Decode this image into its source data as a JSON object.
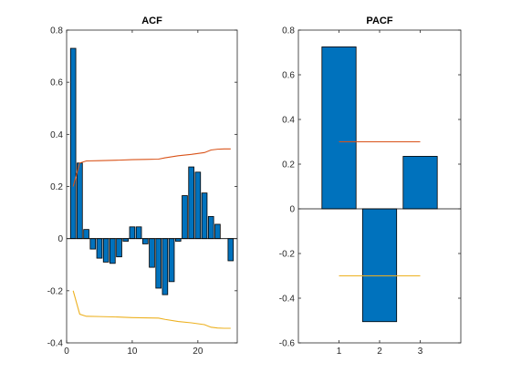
{
  "colors": {
    "bar": "#0072BD",
    "upper_bound": "#D95319",
    "lower_bound": "#EDB120",
    "axis": "#262626",
    "zero_line": "#000000"
  },
  "chart_data": [
    {
      "type": "bar",
      "title": "ACF",
      "xlabel": "",
      "ylabel": "",
      "xlim": [
        0,
        26
      ],
      "ylim": [
        -0.4,
        0.8
      ],
      "xticks": [
        0,
        10,
        20
      ],
      "yticks": [
        -0.4,
        -0.2,
        0,
        0.2,
        0.4,
        0.6,
        0.8
      ],
      "x": [
        1,
        2,
        3,
        4,
        5,
        6,
        7,
        8,
        9,
        10,
        11,
        12,
        13,
        14,
        15,
        16,
        17,
        18,
        19,
        20,
        21,
        22,
        23,
        24,
        25
      ],
      "values": [
        0.73,
        0.29,
        0.035,
        -0.04,
        -0.075,
        -0.09,
        -0.095,
        -0.07,
        -0.01,
        0.045,
        0.045,
        -0.02,
        -0.11,
        -0.19,
        -0.215,
        -0.165,
        -0.01,
        0.165,
        0.275,
        0.255,
        0.175,
        0.085,
        0.055,
        0.0,
        -0.085
      ],
      "bounds": [
        {
          "role": "upper",
          "x": [
            1,
            2,
            3,
            5,
            8,
            10,
            12,
            14,
            15,
            17,
            19,
            21,
            22,
            23,
            24,
            25
          ],
          "y": [
            0.2,
            0.29,
            0.298,
            0.299,
            0.301,
            0.303,
            0.304,
            0.305,
            0.31,
            0.318,
            0.323,
            0.33,
            0.34,
            0.343,
            0.344,
            0.344
          ]
        },
        {
          "role": "lower",
          "x": [
            1,
            2,
            3,
            5,
            8,
            10,
            12,
            14,
            15,
            17,
            19,
            21,
            22,
            23,
            24,
            25
          ],
          "y": [
            -0.2,
            -0.29,
            -0.298,
            -0.299,
            -0.301,
            -0.303,
            -0.304,
            -0.305,
            -0.31,
            -0.318,
            -0.323,
            -0.33,
            -0.34,
            -0.343,
            -0.344,
            -0.344
          ]
        }
      ],
      "grid": false,
      "legend": "none"
    },
    {
      "type": "bar",
      "title": "PACF",
      "xlabel": "",
      "ylabel": "",
      "xlim": [
        0,
        4
      ],
      "ylim": [
        -0.6,
        0.8
      ],
      "xticks": [
        1,
        2,
        3
      ],
      "yticks": [
        -0.6,
        -0.4,
        -0.2,
        0,
        0.2,
        0.4,
        0.6,
        0.8
      ],
      "x": [
        1,
        2,
        3
      ],
      "values": [
        0.725,
        -0.505,
        0.235
      ],
      "bounds": [
        {
          "role": "upper",
          "x": [
            1,
            3
          ],
          "y": [
            0.3,
            0.3
          ]
        },
        {
          "role": "lower",
          "x": [
            1,
            3
          ],
          "y": [
            -0.3,
            -0.3
          ]
        }
      ],
      "grid": false,
      "legend": "none"
    }
  ]
}
